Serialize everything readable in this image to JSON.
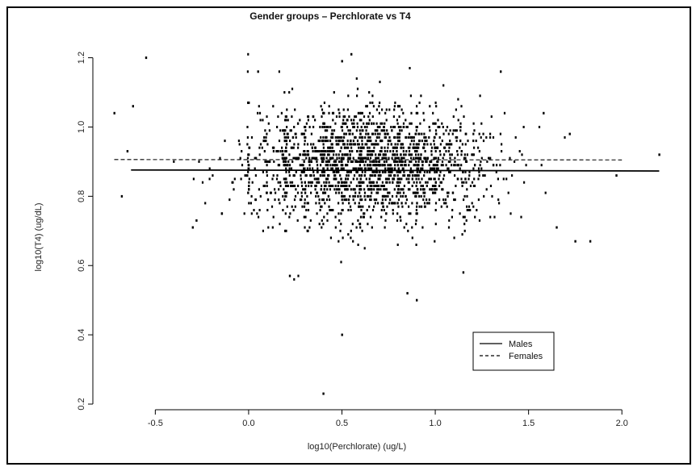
{
  "chart_data": {
    "type": "scatter",
    "title": "Gender groups – Perchlorate vs T4",
    "xlabel": "log10(Perchlorate) (ug/L)",
    "ylabel": "log10(T4) (ug/dL)",
    "xlim": [
      -0.8,
      2.25
    ],
    "ylim": [
      0.2,
      1.22
    ],
    "x_ticks": [
      -0.5,
      0.0,
      0.5,
      1.0,
      1.5,
      2.0
    ],
    "x_tick_labels": [
      "-0.5",
      "0.0",
      "0.5",
      "1.0",
      "1.5",
      "2.0"
    ],
    "y_ticks": [
      0.2,
      0.4,
      0.6,
      0.8,
      1.0,
      1.2
    ],
    "y_tick_labels": [
      "0.2",
      "0.4",
      "0.6",
      "0.8",
      "1.0",
      "1.2"
    ],
    "grid": false,
    "legend_position": "bottom-right",
    "series": [
      {
        "name": "Males",
        "line_style": "solid",
        "x": [
          -0.63,
          2.2
        ],
        "y": [
          0.876,
          0.873
        ]
      },
      {
        "name": "Females",
        "line_style": "dashed",
        "x": [
          -0.72,
          2.0
        ],
        "y": [
          0.906,
          0.905
        ]
      }
    ],
    "scatter_summary": {
      "approx_points": 2000,
      "x_center": 0.65,
      "x_spread": 0.32,
      "y_center": 0.89,
      "y_spread": 0.085
    },
    "notable_points": [
      {
        "x": -0.55,
        "y": 1.2
      },
      {
        "x": -0.62,
        "y": 1.06
      },
      {
        "x": -0.72,
        "y": 1.04
      },
      {
        "x": 0.55,
        "y": 1.21
      },
      {
        "x": 0.5,
        "y": 1.19
      },
      {
        "x": 0.05,
        "y": 1.16
      },
      {
        "x": 1.35,
        "y": 1.16
      },
      {
        "x": 0.5,
        "y": 0.4
      },
      {
        "x": 0.4,
        "y": 0.23
      },
      {
        "x": 0.9,
        "y": 0.5
      },
      {
        "x": 0.85,
        "y": 0.52
      },
      {
        "x": 0.22,
        "y": 0.57
      },
      {
        "x": 1.15,
        "y": 0.58
      },
      {
        "x": 1.75,
        "y": 0.67
      },
      {
        "x": 1.83,
        "y": 0.67
      },
      {
        "x": 1.65,
        "y": 0.71
      },
      {
        "x": 2.2,
        "y": 0.92
      },
      {
        "x": 1.97,
        "y": 0.86
      },
      {
        "x": 1.72,
        "y": 0.98
      },
      {
        "x": 1.58,
        "y": 1.04
      },
      {
        "x": -0.3,
        "y": 0.71
      },
      {
        "x": -0.28,
        "y": 0.73
      },
      {
        "x": -0.68,
        "y": 0.8
      },
      {
        "x": -0.65,
        "y": 0.93
      }
    ],
    "colors": {
      "points": "#000000",
      "lines": "#000000",
      "background": "#ffffff"
    }
  }
}
